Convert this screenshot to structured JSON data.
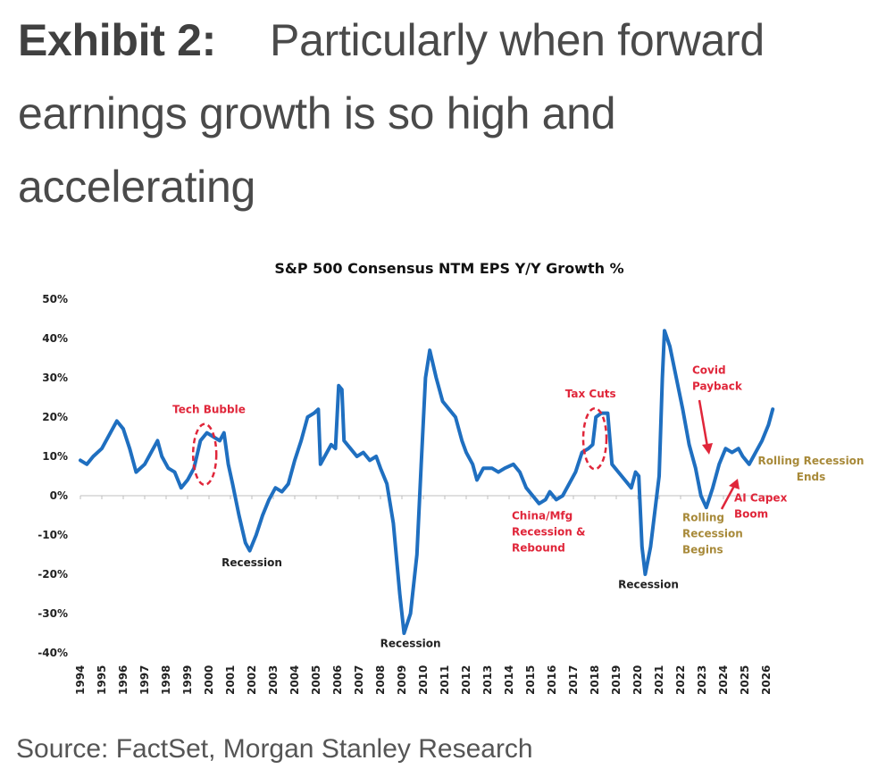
{
  "header": {
    "exhibit_label": "Exhibit 2:",
    "headline_line1": "Particularly when forward",
    "headline_line2": "earnings growth is so high and",
    "headline_line3": "accelerating"
  },
  "source": "Source: FactSet, Morgan Stanley Research",
  "colors": {
    "line": "#1f6fc0",
    "annotation_red": "#e0263a",
    "annotation_gold": "#a88a3a",
    "annotation_dark": "#222222",
    "axis": "#bfbfbf"
  },
  "chart_data": {
    "type": "line",
    "title": "S&P 500 Consensus NTM EPS Y/Y Growth %",
    "xlabel": "",
    "ylabel": "",
    "ylim": [
      -40,
      50
    ],
    "xlim": [
      1994,
      2026
    ],
    "grid": false,
    "legend": "none",
    "y_ticks": [
      "50%",
      "40%",
      "30%",
      "20%",
      "10%",
      "0%",
      "-10%",
      "-20%",
      "-30%",
      "-40%"
    ],
    "y_tick_values": [
      50,
      40,
      30,
      20,
      10,
      0,
      -10,
      -20,
      -30,
      -40
    ],
    "x_ticks": [
      "1994",
      "1995",
      "1996",
      "1997",
      "1998",
      "1999",
      "2000",
      "2001",
      "2002",
      "2003",
      "2004",
      "2005",
      "2006",
      "2007",
      "2008",
      "2009",
      "2010",
      "2011",
      "2012",
      "2013",
      "2014",
      "2015",
      "2016",
      "2017",
      "2018",
      "2019",
      "2020",
      "2021",
      "2022",
      "2023",
      "2024",
      "2025",
      "2026"
    ],
    "series": [
      {
        "name": "S&P 500 Consensus NTM EPS Y/Y Growth %",
        "x": [
          1994.0,
          1994.3,
          1994.6,
          1995.0,
          1995.5,
          1995.7,
          1996.0,
          1996.3,
          1996.6,
          1997.0,
          1997.3,
          1997.6,
          1997.8,
          1998.1,
          1998.4,
          1998.7,
          1999.0,
          1999.3,
          1999.6,
          1999.9,
          2000.2,
          2000.5,
          2000.7,
          2000.9,
          2001.1,
          2001.4,
          2001.7,
          2001.9,
          2002.2,
          2002.5,
          2002.8,
          2003.1,
          2003.4,
          2003.7,
          2004.0,
          2004.3,
          2004.6,
          2004.9,
          2005.1,
          2005.2,
          2005.4,
          2005.7,
          2005.9,
          2006.05,
          2006.2,
          2006.3,
          2006.6,
          2006.9,
          2007.2,
          2007.5,
          2007.8,
          2008.0,
          2008.3,
          2008.6,
          2008.9,
          2009.1,
          2009.4,
          2009.7,
          2009.9,
          2010.1,
          2010.3,
          2010.6,
          2010.9,
          2011.2,
          2011.5,
          2011.8,
          2012.0,
          2012.3,
          2012.5,
          2012.8,
          2013.2,
          2013.5,
          2013.8,
          2014.2,
          2014.5,
          2014.8,
          2015.1,
          2015.4,
          2015.7,
          2015.9,
          2016.2,
          2016.5,
          2016.8,
          2017.1,
          2017.4,
          2017.7,
          2017.9,
          2018.05,
          2018.3,
          2018.6,
          2018.8,
          2019.1,
          2019.4,
          2019.7,
          2019.9,
          2020.05,
          2020.2,
          2020.35,
          2020.6,
          2020.8,
          2021.0,
          2021.15,
          2021.25,
          2021.5,
          2021.8,
          2022.1,
          2022.4,
          2022.7,
          2022.95,
          2023.2,
          2023.5,
          2023.8,
          2024.1,
          2024.4,
          2024.7,
          2024.9,
          2025.2,
          2025.5,
          2025.8,
          2026.1,
          2026.3
        ],
        "values": [
          9,
          8,
          10,
          12,
          17,
          19,
          17,
          12,
          6,
          8,
          11,
          14,
          10,
          7,
          6,
          2,
          4,
          7,
          14,
          16,
          15,
          14,
          16,
          8,
          3,
          -5,
          -12,
          -14,
          -10,
          -5,
          -1,
          2,
          1,
          3,
          9,
          14,
          20,
          21,
          22,
          8,
          10,
          13,
          12,
          28,
          27,
          14,
          12,
          10,
          11,
          9,
          10,
          7,
          3,
          -7,
          -25,
          -35,
          -30,
          -15,
          8,
          30,
          37,
          30,
          24,
          22,
          20,
          14,
          11,
          8,
          4,
          7,
          7,
          6,
          7,
          8,
          6,
          2,
          0,
          -2,
          -1,
          1,
          -1,
          0,
          3,
          6,
          11,
          12,
          13,
          20,
          21,
          21,
          8,
          6,
          4,
          2,
          6,
          5,
          -13,
          -20,
          -13,
          -4,
          5,
          30,
          42,
          38,
          30,
          22,
          13,
          7,
          0,
          -3,
          2,
          8,
          12,
          11,
          12,
          10,
          8,
          11,
          14,
          18,
          22
        ]
      }
    ],
    "annotations": [
      {
        "id": "tech-bubble",
        "text": [
          "Tech Bubble"
        ],
        "color": "red",
        "x": 2000.0,
        "y": 21,
        "marker": "dashed-ellipse"
      },
      {
        "id": "recession-2001",
        "text": [
          "Recession"
        ],
        "color": "dark",
        "x": 2002.0,
        "y": -18
      },
      {
        "id": "recession-2009",
        "text": [
          "Recession"
        ],
        "color": "dark",
        "x": 2009.4,
        "y": -38.5
      },
      {
        "id": "china-mfg",
        "text": [
          "China/Mfg",
          "Recession &",
          "Rebound"
        ],
        "color": "red",
        "x": 2015.5,
        "y": -6
      },
      {
        "id": "tax-cuts",
        "text": [
          "Tax Cuts"
        ],
        "color": "red",
        "x": 2017.8,
        "y": 25,
        "marker": "dashed-ellipse"
      },
      {
        "id": "recession-2020",
        "text": [
          "Recession"
        ],
        "color": "dark",
        "x": 2020.5,
        "y": -23.5
      },
      {
        "id": "covid-payback",
        "text": [
          "Covid",
          "Payback"
        ],
        "color": "red",
        "x": 2022.5,
        "y": 31,
        "marker": "arrow-down"
      },
      {
        "id": "rolling-begins",
        "text": [
          "Rolling",
          "Recession",
          "Begins"
        ],
        "color": "gold",
        "x": 2023.5,
        "y": -6.5
      },
      {
        "id": "ai-capex",
        "text": [
          "AI Capex",
          "Boom"
        ],
        "color": "red",
        "x": 2024.7,
        "y": -1.5,
        "marker": "arrow-up"
      },
      {
        "id": "rolling-ends",
        "text": [
          "Rolling Recession",
          "Ends"
        ],
        "color": "gold",
        "x": 2027.5,
        "y": 8
      }
    ]
  }
}
